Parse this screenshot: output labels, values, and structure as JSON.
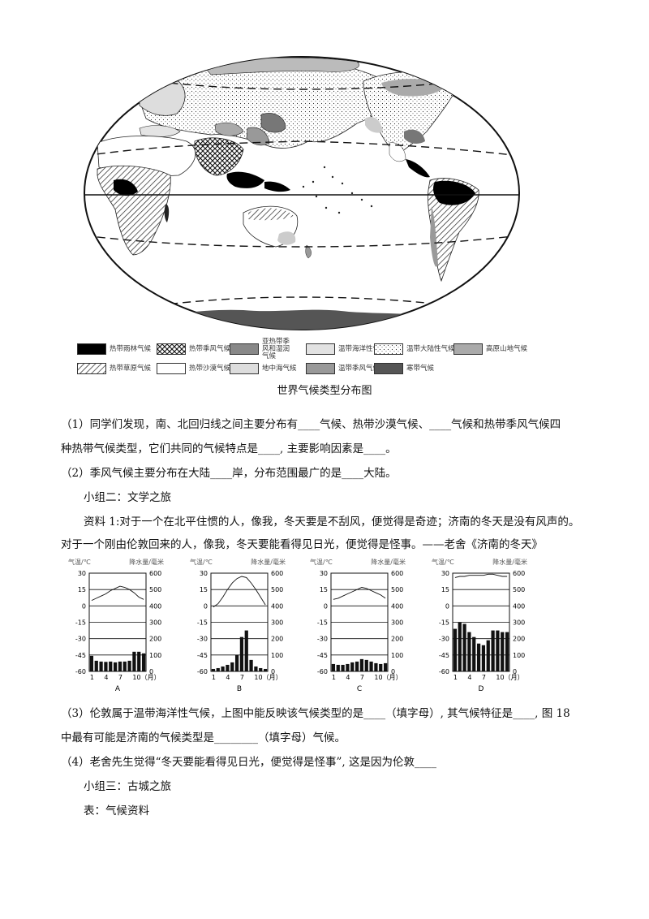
{
  "legend": [
    {
      "name": "热带雨林气候",
      "pattern": "black"
    },
    {
      "name": "热带季风气候",
      "pattern": "cross"
    },
    {
      "name": "亚热带季风和湿润气候",
      "pattern": "gray"
    },
    {
      "name": "温带海洋性气候",
      "pattern": "lightgray"
    },
    {
      "name": "温带大陆性气候",
      "pattern": "dots"
    },
    {
      "name": "高原山地气候",
      "pattern": "midgray"
    },
    {
      "name": "热带草原气候",
      "pattern": "hatch"
    },
    {
      "name": "热带沙漠气候",
      "pattern": "white"
    },
    {
      "name": "地中海气候",
      "pattern": "palegray"
    },
    {
      "name": "温带季风气候",
      "pattern": "gray2"
    },
    {
      "name": "寒带气候",
      "pattern": "dark"
    }
  ],
  "map_caption": "世界气候类型分布图",
  "q1_line1": "（1）同学们发现，南、北回归线之间主要分布有____气候、热带沙漠气候、____气候和热带季风气候四",
  "q1_line2": "种热带气候类型，它们共同的气候特点是____, 主要影响因素是____。",
  "q2": "（2）季风气候主要分布在大陆____岸，分布范围最广的是____大陆。",
  "group2": "小组二：文学之旅",
  "material1_line1": "资料 1:对于一个在北平住惯的人，像我，冬天要是不刮风，便觉得是奇迹；济南的冬天是没有风声的。",
  "material1_line2": "对于一个刚由伦敦回来的人，像我，冬天要能看得见日光，便觉得是怪事。——老舍《济南的冬天》",
  "chart_data": [
    {
      "type": "bar",
      "label": "A",
      "x": [
        1,
        2,
        3,
        4,
        5,
        6,
        7,
        8,
        9,
        10,
        11,
        12
      ],
      "xticks": [
        "1",
        "4",
        "7",
        "10（月）"
      ],
      "temp_axis": {
        "title": "气温/℃",
        "ticks": [
          "30",
          "15",
          "0",
          "-15",
          "-30",
          "-45",
          "-60"
        ],
        "ylim": [
          -60,
          30
        ]
      },
      "precip_axis": {
        "title": "降水量/毫米",
        "ticks": [
          "600",
          "500",
          "400",
          "300",
          "200",
          "100",
          "0"
        ],
        "ylim": [
          0,
          600
        ]
      },
      "temperature": [
        5,
        7,
        9,
        11,
        14,
        16,
        18,
        17,
        15,
        12,
        8,
        6
      ],
      "precipitation": [
        95,
        65,
        60,
        58,
        60,
        55,
        60,
        60,
        65,
        120,
        120,
        110
      ]
    },
    {
      "type": "bar",
      "label": "B",
      "x": [
        1,
        2,
        3,
        4,
        5,
        6,
        7,
        8,
        9,
        10,
        11,
        12
      ],
      "xticks": [
        "1",
        "4",
        "7",
        "10（月）"
      ],
      "temp_axis": {
        "title": "气温/℃",
        "ticks": [
          "30",
          "15",
          "0",
          "-15",
          "-30",
          "-45",
          "-60"
        ],
        "ylim": [
          -60,
          30
        ]
      },
      "precip_axis": {
        "title": "降水量/毫米",
        "ticks": [
          "600",
          "500",
          "400",
          "300",
          "200",
          "100",
          "0"
        ],
        "ylim": [
          0,
          600
        ]
      },
      "temperature": [
        -1,
        2,
        8,
        15,
        21,
        25,
        27,
        26,
        21,
        15,
        8,
        1
      ],
      "precipitation": [
        15,
        20,
        30,
        40,
        55,
        100,
        210,
        250,
        70,
        30,
        20,
        15
      ]
    },
    {
      "type": "bar",
      "label": "C",
      "x": [
        1,
        2,
        3,
        4,
        5,
        6,
        7,
        8,
        9,
        10,
        11,
        12
      ],
      "xticks": [
        "1",
        "4",
        "7",
        "10（月）"
      ],
      "temp_axis": {
        "title": "气温/℃",
        "ticks": [
          "30",
          "15",
          "0",
          "-15",
          "-30",
          "-45",
          "-60"
        ],
        "ylim": [
          -60,
          30
        ]
      },
      "precip_axis": {
        "title": "降水量/毫米",
        "ticks": [
          "600",
          "500",
          "400",
          "300",
          "200",
          "100",
          "0"
        ],
        "ylim": [
          0,
          600
        ]
      },
      "temperature": [
        6,
        7,
        9,
        11,
        13,
        15,
        17,
        16,
        14,
        12,
        10,
        7
      ],
      "precipitation": [
        45,
        40,
        40,
        45,
        55,
        60,
        75,
        70,
        60,
        50,
        45,
        50
      ]
    },
    {
      "type": "bar",
      "label": "D",
      "x": [
        1,
        2,
        3,
        4,
        5,
        6,
        7,
        8,
        9,
        10,
        11,
        12
      ],
      "xticks": [
        "1",
        "4",
        "7",
        "10（月）"
      ],
      "temp_axis": {
        "title": "气温/℃",
        "ticks": [
          "30",
          "15",
          "0",
          "-15",
          "-30",
          "-45",
          "-60"
        ],
        "ylim": [
          -60,
          30
        ]
      },
      "precip_axis": {
        "title": "降水量/毫米",
        "ticks": [
          "600",
          "500",
          "400",
          "300",
          "200",
          "100",
          "0"
        ],
        "ylim": [
          0,
          600
        ]
      },
      "temperature": [
        26,
        27,
        27,
        28,
        28,
        28,
        28,
        29,
        29,
        28,
        27,
        27
      ],
      "precipitation": [
        260,
        300,
        290,
        240,
        210,
        170,
        160,
        190,
        250,
        250,
        240,
        240
      ]
    }
  ],
  "q3_line1": "（3）伦敦属于温带海洋性气候，上图中能反映该气候类型的是____（填字母）, 其气候特征是____, 图 18",
  "q3_line2": "中最有可能是济南的气候类型是________（填字母）气候。",
  "q4": "（4）老舍先生觉得“冬天要能看得见日光，便觉得是怪事”, 这是因为伦敦____",
  "group3": "小组三：古城之旅",
  "table_label": "表：气候资料"
}
